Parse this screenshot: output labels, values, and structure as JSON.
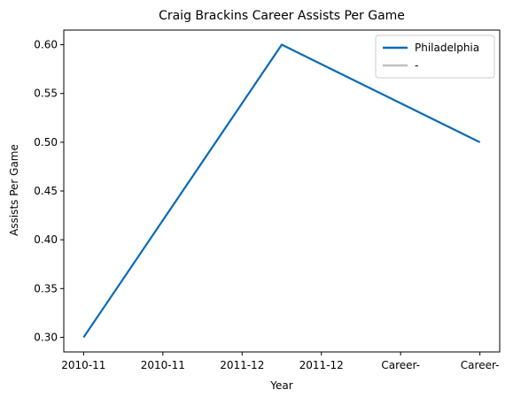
{
  "chart_data": {
    "type": "line",
    "title": "Craig Brackins Career Assists Per Game",
    "xlabel": "Year",
    "ylabel": "Assists Per Game",
    "categories": [
      "2010-11",
      "2010-11",
      "2011-12",
      "2011-12",
      "Career-",
      "Career-"
    ],
    "series": [
      {
        "name": "Philadelphia",
        "x": [
          0,
          2.5,
          5
        ],
        "values": [
          0.3,
          0.6,
          0.5
        ],
        "color": "#0a6ab4"
      },
      {
        "name": "-",
        "x": [],
        "values": [],
        "color": "#c0c0c0"
      }
    ],
    "ylim": [
      0.285,
      0.615
    ],
    "yticks": [
      0.3,
      0.35,
      0.4,
      0.45,
      0.5,
      0.55,
      0.6
    ],
    "ytick_labels": [
      "0.30",
      "0.35",
      "0.40",
      "0.45",
      "0.50",
      "0.55",
      "0.60"
    ],
    "grid": false,
    "legend_position": "top-right"
  }
}
